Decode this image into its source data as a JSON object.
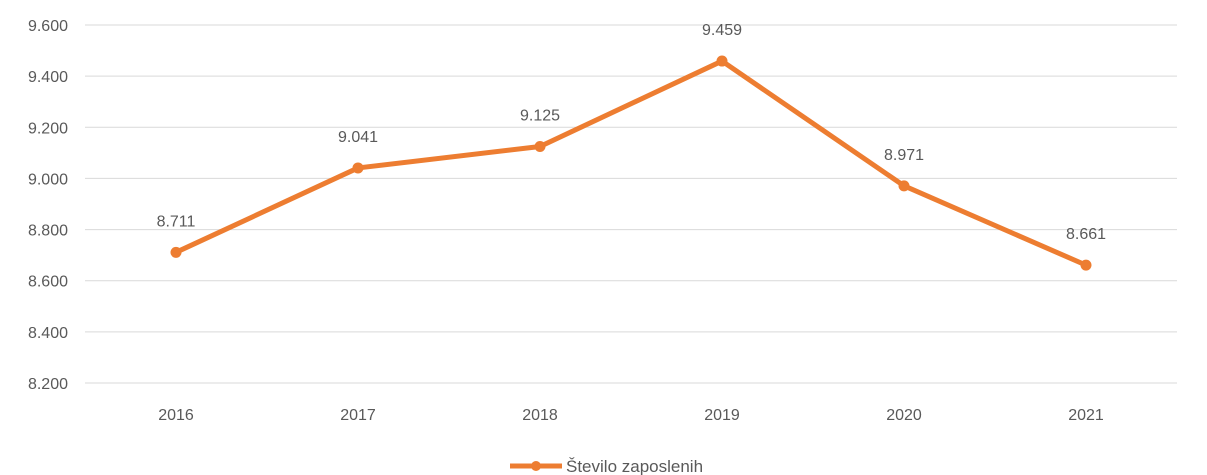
{
  "chart_data": {
    "type": "line",
    "title": "",
    "xlabel": "",
    "ylabel": "",
    "categories": [
      "2016",
      "2017",
      "2018",
      "2019",
      "2020",
      "2021"
    ],
    "y_ticks": [
      "9.600",
      "9.400",
      "9.200",
      "9.000",
      "8.800",
      "8.600",
      "8.400",
      "8.200"
    ],
    "ylim": [
      8200,
      9600
    ],
    "grid": true,
    "legend_position": "bottom",
    "series": [
      {
        "name": "Število zaposlenih",
        "values": [
          8711,
          9041,
          9125,
          9459,
          8971,
          8661
        ],
        "data_labels": [
          "8.711",
          "9.041",
          "9.125",
          "9.459",
          "8.971",
          "8.661"
        ],
        "color": "#ED7D31"
      }
    ]
  },
  "colors": {
    "series": "#ED7D31",
    "grid": "#D9D9D9",
    "text": "#595959"
  }
}
